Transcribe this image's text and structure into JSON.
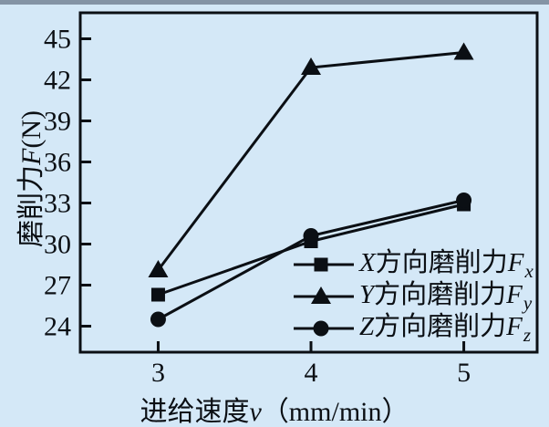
{
  "figure": {
    "background_color": "#d4e8f7",
    "top_strip_color": "#8494a5",
    "ink_color": "#0b0f14"
  },
  "chart_data": {
    "type": "line",
    "title": "",
    "xlabel_parts": {
      "cn": "进给速度",
      "var": "v",
      "unit": "（mm/min）"
    },
    "ylabel_parts": {
      "cn": "磨削力",
      "var": "F",
      "unit": "(N)"
    },
    "x": [
      3,
      4,
      5
    ],
    "x_ticks": [
      3,
      4,
      5
    ],
    "y_ticks": [
      24,
      27,
      30,
      33,
      36,
      39,
      42,
      45
    ],
    "xlim": [
      2.49,
      5.48
    ],
    "ylim": [
      22.1,
      46.9
    ],
    "grid": false,
    "legend_position": "inside-lower-right",
    "series": [
      {
        "name": "X方向磨削力Fx",
        "marker": "square",
        "values": [
          26.3,
          30.2,
          32.9
        ]
      },
      {
        "name": "Y方向磨削力Fy",
        "marker": "triangle",
        "values": [
          28.1,
          42.9,
          44.0
        ]
      },
      {
        "name": "Z方向磨削力Fz",
        "marker": "circle",
        "values": [
          24.5,
          30.6,
          33.2
        ]
      }
    ]
  },
  "legend": {
    "items": [
      {
        "dir": "X",
        "cn": "方向磨削力",
        "sym": "F",
        "sub": "x",
        "marker": "square"
      },
      {
        "dir": "Y",
        "cn": "方向磨削力",
        "sym": "F",
        "sub": "y",
        "marker": "triangle"
      },
      {
        "dir": "Z",
        "cn": "方向磨削力",
        "sym": "F",
        "sub": "z",
        "marker": "circle"
      }
    ]
  }
}
